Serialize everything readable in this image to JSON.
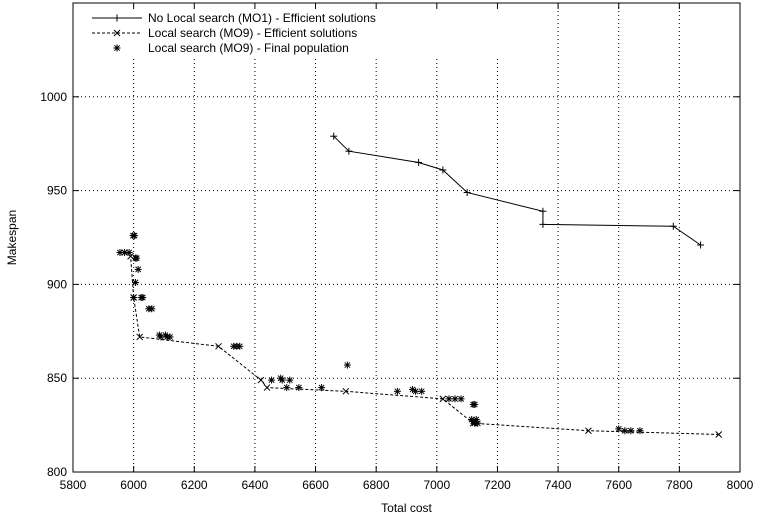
{
  "chart_data": {
    "type": "scatter",
    "xlabel": "Total cost",
    "ylabel": "Makespan",
    "xlim": [
      5800,
      8000
    ],
    "ylim": [
      800,
      1050
    ],
    "xticks": [
      5800,
      6000,
      6200,
      6400,
      6600,
      6800,
      7000,
      7200,
      7400,
      7600,
      7800,
      8000
    ],
    "yticks": [
      800,
      850,
      900,
      950,
      1000
    ],
    "grid": true,
    "legend_position": "top-left",
    "series": [
      {
        "name": "No Local search (MO1) - Efficient solutions",
        "style": "solid-line-plus",
        "color": "#000000",
        "points": [
          [
            6660,
            979
          ],
          [
            6710,
            971
          ],
          [
            6940,
            965
          ],
          [
            7020,
            961
          ],
          [
            7100,
            949
          ],
          [
            7350,
            939
          ],
          [
            7350,
            932
          ],
          [
            7780,
            931
          ],
          [
            7870,
            921
          ]
        ]
      },
      {
        "name": "Local search (MO9) - Efficient solutions",
        "style": "dashed-line-x",
        "color": "#000000",
        "points": [
          [
            5970,
            917
          ],
          [
            5990,
            915
          ],
          [
            6000,
            893
          ],
          [
            6020,
            872
          ],
          [
            6280,
            867
          ],
          [
            6420,
            849
          ],
          [
            6440,
            845
          ],
          [
            6700,
            843
          ],
          [
            7020,
            839
          ],
          [
            7120,
            826
          ],
          [
            7500,
            822
          ],
          [
            7930,
            820
          ]
        ]
      },
      {
        "name": "Local search (MO9) - Final population",
        "style": "star",
        "color": "#000000",
        "points": [
          [
            5955,
            917
          ],
          [
            5970,
            917
          ],
          [
            5985,
            917
          ],
          [
            5998,
            926
          ],
          [
            6003,
            926
          ],
          [
            6006,
            914
          ],
          [
            6010,
            914
          ],
          [
            6006,
            901
          ],
          [
            6015,
            908
          ],
          [
            6000,
            893
          ],
          [
            6025,
            893
          ],
          [
            6030,
            893
          ],
          [
            6050,
            887
          ],
          [
            6060,
            887
          ],
          [
            6085,
            873
          ],
          [
            6090,
            872
          ],
          [
            6105,
            873
          ],
          [
            6110,
            872
          ],
          [
            6120,
            872
          ],
          [
            6330,
            867
          ],
          [
            6340,
            867
          ],
          [
            6350,
            867
          ],
          [
            6455,
            849
          ],
          [
            6485,
            850
          ],
          [
            6490,
            849
          ],
          [
            6515,
            849
          ],
          [
            6505,
            845
          ],
          [
            6545,
            845
          ],
          [
            6620,
            845
          ],
          [
            6705,
            857
          ],
          [
            6870,
            843
          ],
          [
            6920,
            844
          ],
          [
            6930,
            843
          ],
          [
            6950,
            843
          ],
          [
            7040,
            839
          ],
          [
            7060,
            839
          ],
          [
            7080,
            839
          ],
          [
            7120,
            836
          ],
          [
            7125,
            836
          ],
          [
            7115,
            828
          ],
          [
            7120,
            827
          ],
          [
            7125,
            826
          ],
          [
            7130,
            828
          ],
          [
            7135,
            826
          ],
          [
            7600,
            823
          ],
          [
            7620,
            822
          ],
          [
            7640,
            822
          ],
          [
            7670,
            822
          ]
        ]
      }
    ]
  }
}
